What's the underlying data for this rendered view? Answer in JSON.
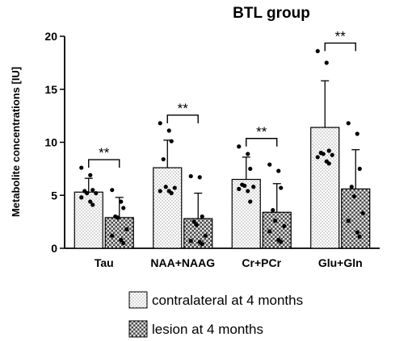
{
  "chart_data": {
    "type": "bar",
    "title": "BTL group",
    "ylabel": "Metabolite concentrations [IU]",
    "xlabel": "",
    "ylim": [
      0,
      20
    ],
    "yticks": [
      0,
      5,
      10,
      15,
      20
    ],
    "categories": [
      "Tau",
      "NAA+NAAG",
      "Cr+PCr",
      "Glu+Gln"
    ],
    "series": [
      {
        "name": "contralateral at 4 months",
        "pattern": "dotted",
        "values": [
          5.3,
          7.6,
          6.5,
          11.4
        ],
        "error_upper": [
          6.6,
          10.2,
          8.6,
          15.8
        ],
        "points": [
          [
            7.6,
            6.9,
            5.5,
            5.4,
            5.2,
            5.2,
            4.8,
            4.4,
            4.1
          ],
          [
            11.8,
            11.1,
            10.1,
            8.4,
            5.8,
            5.7,
            5.4,
            5.4,
            5.2
          ],
          [
            9.6,
            8.9,
            7.5,
            6.0,
            5.9,
            5.8,
            5.6,
            5.4,
            4.4
          ],
          [
            18.6,
            17.5,
            9.2,
            9.0,
            8.9,
            8.8,
            8.6,
            8.2,
            8.0
          ]
        ]
      },
      {
        "name": "lesion at 4 months",
        "pattern": "checkered",
        "values": [
          2.9,
          2.8,
          3.4,
          5.6
        ],
        "error_upper": [
          4.8,
          5.2,
          6.1,
          9.3
        ],
        "points": [
          [
            5.5,
            4.4,
            3.8,
            3.0,
            2.9,
            1.8,
            1.2,
            0.8,
            0.5
          ],
          [
            6.8,
            6.7,
            3.0,
            2.5,
            2.2,
            1.2,
            0.7,
            0.6,
            0.4
          ],
          [
            7.9,
            7.3,
            5.7,
            3.6,
            2.6,
            2.1,
            1.6,
            0.8,
            0.6
          ],
          [
            11.8,
            10.8,
            7.5,
            5.8,
            4.9,
            3.3,
            2.6,
            1.5,
            1.1
          ]
        ]
      }
    ],
    "significance": [
      "**",
      "**",
      "**",
      "**"
    ],
    "legend_position": "bottom",
    "grid": false
  }
}
